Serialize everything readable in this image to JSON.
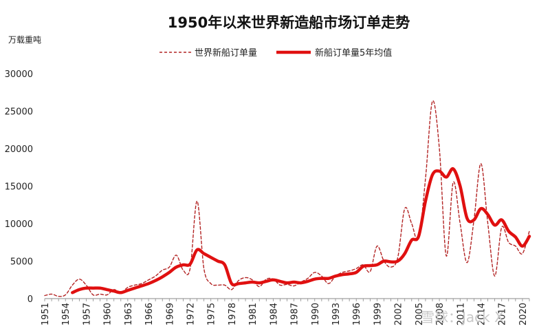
{
  "chart_data": {
    "type": "line",
    "title": "1950年以来世界新造船市场订单走势",
    "ylabel": "万载重吨",
    "xlabel": "",
    "ylim": [
      0,
      30000
    ],
    "yticks": [
      0,
      5000,
      10000,
      15000,
      20000,
      25000,
      30000
    ],
    "xlim": [
      1951,
      2021
    ],
    "xticks": [
      1951,
      1954,
      1957,
      1960,
      1963,
      1966,
      1969,
      1972,
      1975,
      1978,
      1981,
      1984,
      1987,
      1990,
      1993,
      1996,
      1999,
      2002,
      2005,
      2008,
      2011,
      2014,
      2017,
      2020
    ],
    "grid": false,
    "legend": "top-center",
    "series": [
      {
        "name": "世界新船订单量",
        "style": "dashed",
        "color": "#b22222",
        "x": [
          1951,
          1952,
          1953,
          1954,
          1955,
          1956,
          1957,
          1958,
          1959,
          1960,
          1961,
          1962,
          1963,
          1964,
          1965,
          1966,
          1967,
          1968,
          1969,
          1970,
          1971,
          1972,
          1973,
          1974,
          1975,
          1976,
          1977,
          1978,
          1979,
          1980,
          1981,
          1982,
          1983,
          1984,
          1985,
          1986,
          1987,
          1988,
          1989,
          1990,
          1991,
          1992,
          1993,
          1994,
          1995,
          1996,
          1997,
          1998,
          1999,
          2000,
          2001,
          2002,
          2003,
          2004,
          2005,
          2006,
          2007,
          2008,
          2009,
          2010,
          2011,
          2012,
          2013,
          2014,
          2015,
          2016,
          2017,
          2018,
          2019,
          2020,
          2021
        ],
        "values": [
          400,
          600,
          300,
          500,
          1800,
          2600,
          1800,
          500,
          600,
          500,
          1200,
          800,
          1500,
          1800,
          2000,
          2500,
          3000,
          3800,
          4200,
          5800,
          3800,
          4000,
          13000,
          4000,
          2000,
          1800,
          1800,
          1200,
          2400,
          2800,
          2500,
          1600,
          2600,
          2600,
          1800,
          1900,
          1700,
          2200,
          2700,
          3500,
          3000,
          2000,
          3000,
          3500,
          3700,
          4000,
          4500,
          3600,
          7000,
          5000,
          4200,
          5500,
          12000,
          10000,
          8000,
          16000,
          26300,
          20000,
          5700,
          15500,
          10000,
          4800,
          10500,
          18000,
          10000,
          3000,
          9500,
          7500,
          7000,
          6000,
          9000
        ]
      },
      {
        "name": "新船订单量5年均值",
        "style": "solid",
        "color": "#e01010",
        "x": [
          1955,
          1956,
          1957,
          1958,
          1959,
          1960,
          1961,
          1962,
          1963,
          1964,
          1965,
          1966,
          1967,
          1968,
          1969,
          1970,
          1971,
          1972,
          1973,
          1974,
          1975,
          1976,
          1977,
          1978,
          1979,
          1980,
          1981,
          1982,
          1983,
          1984,
          1985,
          1986,
          1987,
          1988,
          1989,
          1990,
          1991,
          1992,
          1993,
          1994,
          1995,
          1996,
          1997,
          1998,
          1999,
          2000,
          2001,
          2002,
          2003,
          2004,
          2005,
          2006,
          2007,
          2008,
          2009,
          2010,
          2011,
          2012,
          2013,
          2014,
          2015,
          2016,
          2017,
          2018,
          2019,
          2020,
          2021
        ],
        "values": [
          800,
          1200,
          1400,
          1400,
          1400,
          1200,
          1000,
          800,
          1100,
          1400,
          1700,
          2000,
          2400,
          2900,
          3500,
          4200,
          4500,
          4600,
          6500,
          6000,
          5500,
          5000,
          4500,
          2000,
          2000,
          2100,
          2200,
          2100,
          2300,
          2500,
          2300,
          2100,
          2200,
          2100,
          2300,
          2600,
          2700,
          2700,
          3000,
          3200,
          3300,
          3500,
          4300,
          4400,
          4500,
          5000,
          4900,
          5000,
          6000,
          7800,
          8300,
          13000,
          16500,
          17000,
          16200,
          17300,
          15000,
          10700,
          10500,
          12000,
          11200,
          9800,
          10500,
          9000,
          8200,
          7000,
          8300
        ]
      }
    ],
    "watermark": "雪球：Jack X"
  }
}
